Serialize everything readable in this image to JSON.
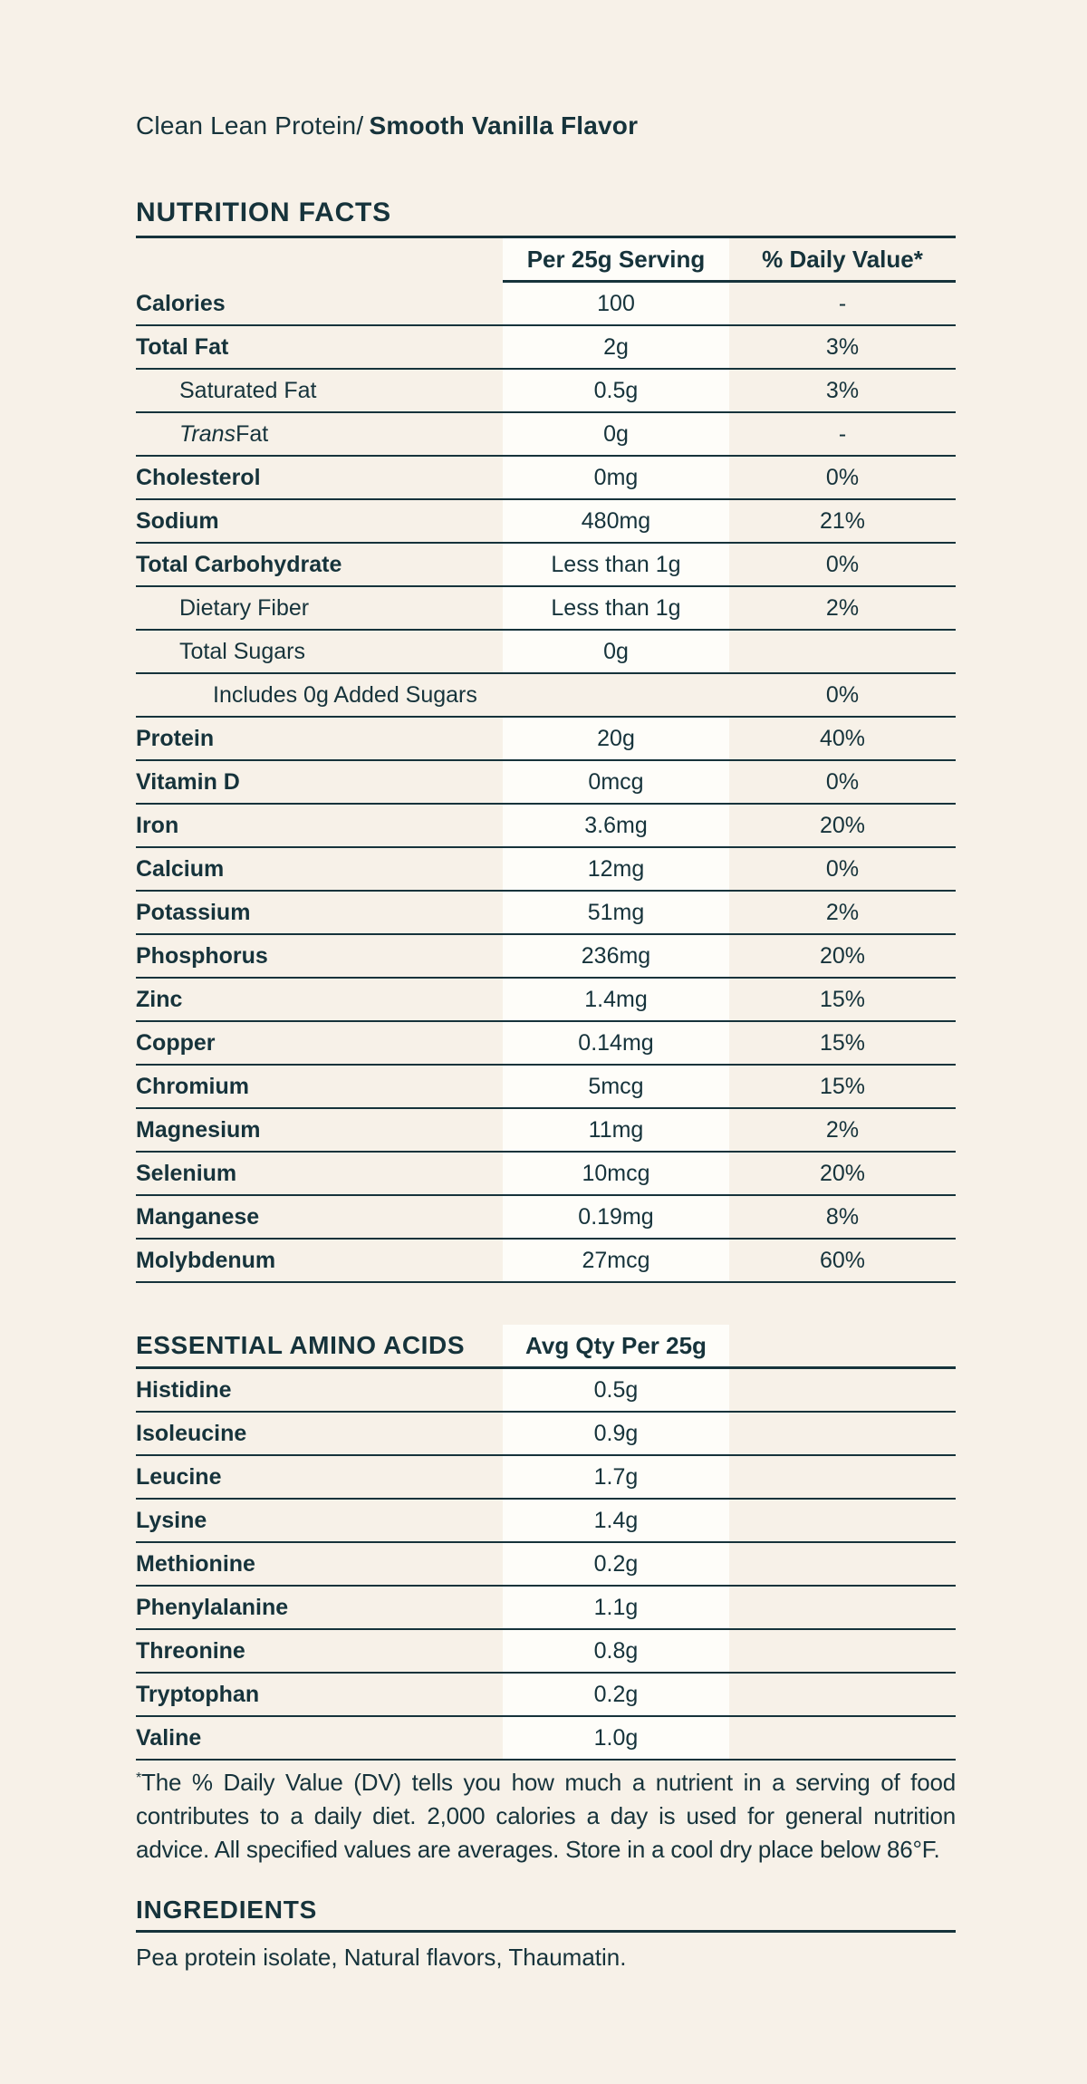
{
  "page": {
    "background_color": "#F7F1E8",
    "band_color": "#FEFDF9",
    "ink_color": "#16333B"
  },
  "product_title": {
    "regular_part": "Clean Lean Protein/",
    "bold_part": "Smooth Vanilla Flavor"
  },
  "nutrition": {
    "heading": "NUTRITION FACTS",
    "columns": {
      "serving": "Per 25g Serving",
      "daily_value": "% Daily Value*"
    },
    "rows": [
      {
        "label": "Calories",
        "serving": "100",
        "dv": "-",
        "bold": true,
        "indent": 0,
        "band": true
      },
      {
        "label": "Total Fat",
        "serving": "2g",
        "dv": "3%",
        "bold": true,
        "indent": 0,
        "band": true
      },
      {
        "label": "Saturated Fat",
        "serving": "0.5g",
        "dv": "3%",
        "bold": false,
        "indent": 1,
        "band": true
      },
      {
        "label": "Trans Fat",
        "serving": "0g",
        "dv": "-",
        "bold": false,
        "indent": 1,
        "band": true,
        "italic_prefix": "Trans"
      },
      {
        "label": "Cholesterol",
        "serving": "0mg",
        "dv": "0%",
        "bold": true,
        "indent": 0,
        "band": true
      },
      {
        "label": "Sodium",
        "serving": "480mg",
        "dv": "21%",
        "bold": true,
        "indent": 0,
        "band": true
      },
      {
        "label": "Total Carbohydrate",
        "serving": "Less than 1g",
        "dv": "0%",
        "bold": true,
        "indent": 0,
        "band": true
      },
      {
        "label": "Dietary Fiber",
        "serving": "Less than 1g",
        "dv": "2%",
        "bold": false,
        "indent": 1,
        "band": true
      },
      {
        "label": "Total Sugars",
        "serving": "0g",
        "dv": "",
        "bold": false,
        "indent": 1,
        "band": true
      },
      {
        "label": "Includes 0g Added Sugars",
        "serving": "",
        "dv": "0%",
        "bold": false,
        "indent": 2,
        "band": false
      },
      {
        "label": "Protein",
        "serving": "20g",
        "dv": "40%",
        "bold": true,
        "indent": 0,
        "band": true
      },
      {
        "label": "Vitamin D",
        "serving": "0mcg",
        "dv": "0%",
        "bold": true,
        "indent": 0,
        "band": true
      },
      {
        "label": "Iron",
        "serving": "3.6mg",
        "dv": "20%",
        "bold": true,
        "indent": 0,
        "band": true
      },
      {
        "label": "Calcium",
        "serving": "12mg",
        "dv": "0%",
        "bold": true,
        "indent": 0,
        "band": true
      },
      {
        "label": "Potassium",
        "serving": "51mg",
        "dv": "2%",
        "bold": true,
        "indent": 0,
        "band": true
      },
      {
        "label": "Phosphorus",
        "serving": "236mg",
        "dv": "20%",
        "bold": true,
        "indent": 0,
        "band": true
      },
      {
        "label": "Zinc",
        "serving": "1.4mg",
        "dv": "15%",
        "bold": true,
        "indent": 0,
        "band": true
      },
      {
        "label": "Copper",
        "serving": "0.14mg",
        "dv": "15%",
        "bold": true,
        "indent": 0,
        "band": true
      },
      {
        "label": "Chromium",
        "serving": "5mcg",
        "dv": "15%",
        "bold": true,
        "indent": 0,
        "band": true
      },
      {
        "label": "Magnesium",
        "serving": "11mg",
        "dv": "2%",
        "bold": true,
        "indent": 0,
        "band": true
      },
      {
        "label": "Selenium",
        "serving": "10mcg",
        "dv": "20%",
        "bold": true,
        "indent": 0,
        "band": true
      },
      {
        "label": "Manganese",
        "serving": "0.19mg",
        "dv": "8%",
        "bold": true,
        "indent": 0,
        "band": true
      },
      {
        "label": "Molybdenum",
        "serving": "27mcg",
        "dv": "60%",
        "bold": true,
        "indent": 0,
        "band": true
      }
    ]
  },
  "amino": {
    "heading": "ESSENTIAL AMINO ACIDS",
    "column": "Avg Qty Per 25g",
    "rows": [
      {
        "label": "Histidine",
        "value": "0.5g"
      },
      {
        "label": "Isoleucine",
        "value": "0.9g"
      },
      {
        "label": "Leucine",
        "value": "1.7g"
      },
      {
        "label": "Lysine",
        "value": "1.4g"
      },
      {
        "label": "Methionine",
        "value": "0.2g"
      },
      {
        "label": "Phenylalanine",
        "value": "1.1g"
      },
      {
        "label": "Threonine",
        "value": "0.8g"
      },
      {
        "label": "Tryptophan",
        "value": "0.2g"
      },
      {
        "label": "Valine",
        "value": "1.0g"
      }
    ]
  },
  "footnote": {
    "marker": "*",
    "text": "The % Daily Value (DV) tells you how much a nutrient in a serving of food contributes to a daily diet. 2,000 calories a day is used for general nutrition advice. All specified values are averages. Store in a cool dry place below 86°F."
  },
  "ingredients": {
    "heading": "INGREDIENTS",
    "text": "Pea protein isolate, Natural flavors, Thaumatin."
  }
}
